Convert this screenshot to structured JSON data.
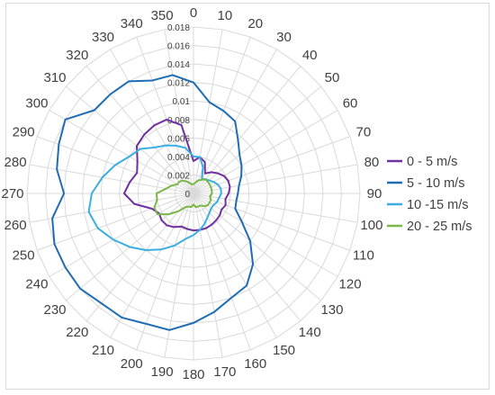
{
  "chart_data": {
    "type": "radar",
    "title": "",
    "angle_labels": [
      "0",
      "10",
      "20",
      "30",
      "40",
      "50",
      "60",
      "70",
      "80",
      "90",
      "100",
      "110",
      "120",
      "130",
      "140",
      "150",
      "160",
      "170",
      "180",
      "190",
      "200",
      "210",
      "220",
      "230",
      "240",
      "250",
      "260",
      "270",
      "280",
      "290",
      "300",
      "310",
      "320",
      "330",
      "340",
      "350"
    ],
    "radial_ticks": [
      "0",
      "0.002",
      "0.004",
      "0.006",
      "0.008",
      "0.01",
      "0.012",
      "0.014",
      "0.016",
      "0.018"
    ],
    "rlim": [
      0,
      0.018
    ],
    "grid": true,
    "legend_position": "right",
    "series": [
      {
        "name": "0 - 5 m/s",
        "color": "#7030a0",
        "values": [
          0.0035,
          0.004,
          0.0036,
          0.0025,
          0.003,
          0.0034,
          0.0038,
          0.004,
          0.004,
          0.0038,
          0.0035,
          0.0037,
          0.0035,
          0.0037,
          0.0038,
          0.0039,
          0.004,
          0.004,
          0.004,
          0.0039,
          0.0038,
          0.0042,
          0.0045,
          0.0045,
          0.0043,
          0.0048,
          0.0065,
          0.0075,
          0.007,
          0.0065,
          0.007,
          0.008,
          0.0083,
          0.0085,
          0.0085,
          0.0075
        ]
      },
      {
        "name": "5 - 10 m/s",
        "color": "#1f6cb4",
        "values": [
          0.012,
          0.01,
          0.0095,
          0.009,
          0.0075,
          0.0065,
          0.006,
          0.0055,
          0.005,
          0.0048,
          0.0047,
          0.0048,
          0.006,
          0.008,
          0.01,
          0.0115,
          0.012,
          0.013,
          0.014,
          0.015,
          0.015,
          0.0155,
          0.0155,
          0.016,
          0.016,
          0.016,
          0.0155,
          0.014,
          0.015,
          0.0155,
          0.016,
          0.014,
          0.014,
          0.014,
          0.013,
          0.013
        ]
      },
      {
        "name": "10 -15 m/s",
        "color": "#3aaee1",
        "values": [
          0.004,
          0.004,
          0.003,
          0.0018,
          0.002,
          0.0022,
          0.0025,
          0.0028,
          0.003,
          0.003,
          0.0028,
          0.0027,
          0.0025,
          0.0025,
          0.0027,
          0.003,
          0.0035,
          0.004,
          0.0045,
          0.005,
          0.006,
          0.007,
          0.008,
          0.009,
          0.01,
          0.011,
          0.0115,
          0.011,
          0.01,
          0.009,
          0.008,
          0.0075,
          0.0065,
          0.006,
          0.0055,
          0.005
        ]
      },
      {
        "name": "20 - 25 m/s",
        "color": "#7ab648",
        "values": [
          0.001,
          0.0012,
          0.0015,
          0.0017,
          0.002,
          0.002,
          0.002,
          0.002,
          0.002,
          0.002,
          0.0018,
          0.002,
          0.002,
          0.002,
          0.0018,
          0.0015,
          0.0015,
          0.0015,
          0.0012,
          0.0015,
          0.0015,
          0.0017,
          0.0025,
          0.0035,
          0.0045,
          0.0045,
          0.004,
          0.004,
          0.003,
          0.0025,
          0.002,
          0.002,
          0.0018,
          0.0015,
          0.0012,
          0.001
        ]
      }
    ]
  }
}
